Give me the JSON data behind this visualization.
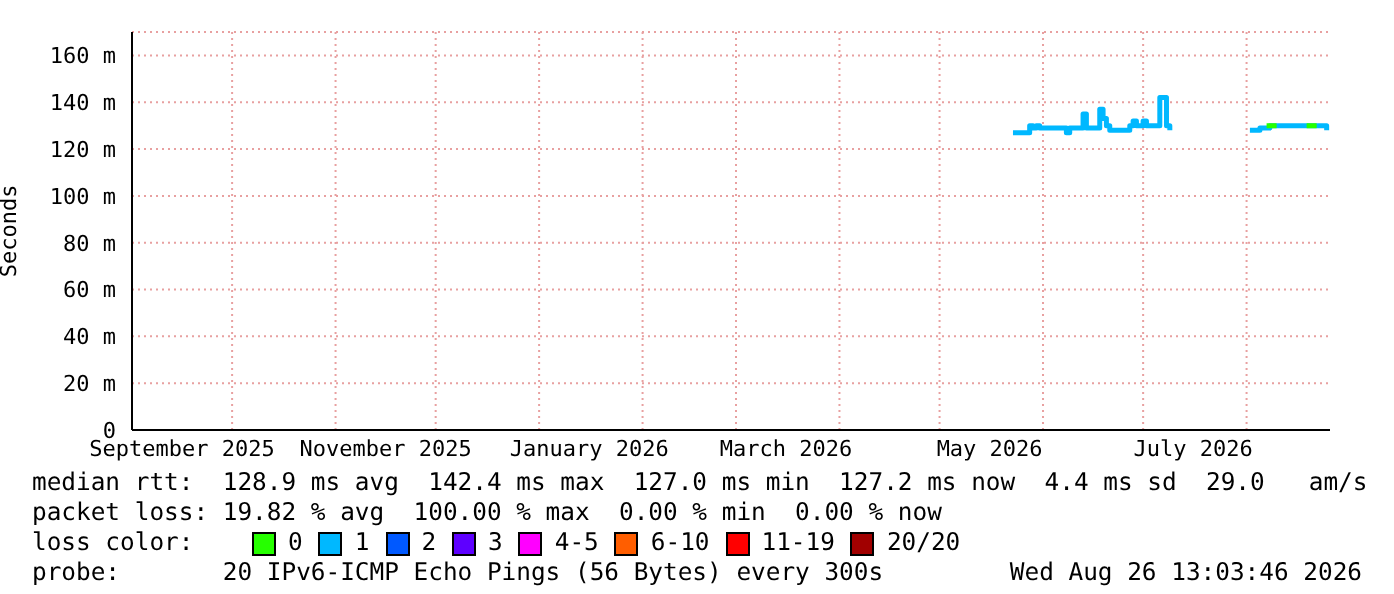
{
  "chart_data": {
    "type": "step",
    "ylabel": "Seconds",
    "xlim": [
      "2025-09-01",
      "2026-08-26"
    ],
    "ylim": [
      0,
      170
    ],
    "yticks": [
      0,
      {
        "value": 20,
        "label": "20 m"
      },
      {
        "value": 40,
        "label": "40 m"
      },
      {
        "value": 60,
        "label": "60 m"
      },
      {
        "value": 80,
        "label": "80 m"
      },
      {
        "value": 100,
        "label": "100 m"
      },
      {
        "value": 120,
        "label": "120 m"
      },
      {
        "value": 140,
        "label": "140 m"
      },
      {
        "value": 160,
        "label": "160 m"
      }
    ],
    "xticks": [
      {
        "value": "2025-09-16",
        "label": "September 2025"
      },
      {
        "value": "2025-10-01",
        "label": null
      },
      {
        "value": "2025-11-01",
        "label": null
      },
      {
        "value": "2025-11-16",
        "label": "November 2025"
      },
      {
        "value": "2025-12-01",
        "label": null
      },
      {
        "value": "2026-01-01",
        "label": null
      },
      {
        "value": "2026-01-16",
        "label": "January 2026"
      },
      {
        "value": "2026-02-01",
        "label": null
      },
      {
        "value": "2026-03-01",
        "label": null
      },
      {
        "value": "2026-03-16",
        "label": "March 2026"
      },
      {
        "value": "2026-04-01",
        "label": null
      },
      {
        "value": "2026-05-01",
        "label": null
      },
      {
        "value": "2026-05-16",
        "label": "May 2026"
      },
      {
        "value": "2026-06-01",
        "label": null
      },
      {
        "value": "2026-07-01",
        "label": null
      },
      {
        "value": "2026-07-16",
        "label": "July 2026"
      },
      {
        "value": "2026-08-01",
        "label": null
      }
    ],
    "grid": true,
    "legend": "bottom",
    "legend_title": "loss color:",
    "series": [
      {
        "name": "0",
        "color": "#26ff00",
        "x": [
          "2026-08-07",
          "2026-08-10",
          "2026-08-14",
          "2026-08-19",
          "2026-08-22"
        ],
        "values": [
          130,
          130,
          null,
          130,
          130
        ]
      },
      {
        "name": "1",
        "color": "#00b8ff",
        "x": [
          "2026-05-23",
          "2026-05-27",
          "2026-05-28",
          "2026-05-29",
          "2026-05-30",
          "2026-05-31",
          "2026-06-03",
          "2026-06-07",
          "2026-06-08",
          "2026-06-09",
          "2026-06-12",
          "2026-06-13",
          "2026-06-14",
          "2026-06-17",
          "2026-06-18",
          "2026-06-19",
          "2026-06-20",
          "2026-06-21",
          "2026-06-24",
          "2026-06-27",
          "2026-06-28",
          "2026-06-29",
          "2026-07-01",
          "2026-07-02",
          "2026-07-05",
          "2026-07-06",
          "2026-07-07",
          "2026-07-08",
          "2026-07-09",
          "2026-07-20",
          "2026-08-02",
          "2026-08-05",
          "2026-08-08",
          "2026-08-20",
          "2026-08-24",
          "2026-08-25"
        ],
        "values": [
          127,
          127,
          130,
          129,
          130,
          129,
          129,
          129,
          127,
          129,
          129,
          135,
          129,
          129,
          137,
          133,
          130,
          128,
          128,
          130,
          132,
          130,
          132,
          130,
          130,
          142,
          142,
          130,
          128,
          null,
          128,
          129,
          130,
          130,
          130,
          128
        ]
      },
      {
        "name": "2",
        "color": "#0059ff"
      },
      {
        "name": "3",
        "color": "#5e00ff"
      },
      {
        "name": "4-5",
        "color": "#ff00ff"
      },
      {
        "name": "6-10",
        "color": "#ff5e00"
      },
      {
        "name": "11-19",
        "color": "#ff0000"
      },
      {
        "name": "20/20",
        "color": "#a10000"
      }
    ],
    "annotations": [
      "median rtt:  128.9 ms avg  142.4 ms max  127.0 ms min  127.2 ms now  4.4 ms sd  29.0   am/s",
      "packet loss: 19.82 % avg  100.00 % max  0.00 % min  0.00 % now",
      "probe:       20 IPv6-ICMP Echo Pings (56 Bytes) every 300s",
      "Wed Aug 26 13:03:46 2026"
    ]
  }
}
